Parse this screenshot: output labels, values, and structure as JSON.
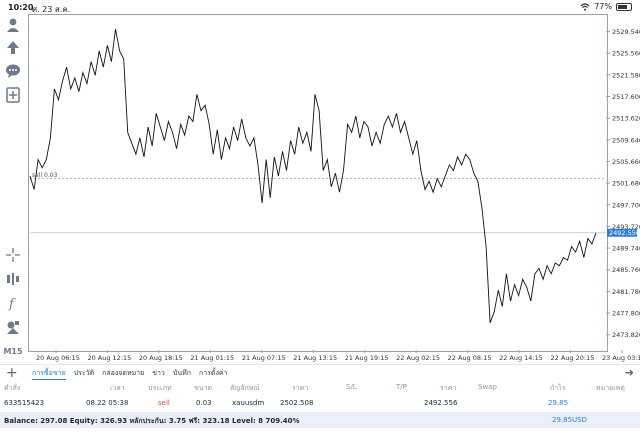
{
  "status": {
    "time": "10:20",
    "date": "ศ. 23 ส.ค.",
    "battery": "77%",
    "battery_level": 0.77
  },
  "sidebar": {
    "tools": [
      "user-icon",
      "pointer-up-icon",
      "chat-icon",
      "add-chart-icon",
      "crosshair-icon",
      "indicators-icon",
      "function-icon",
      "objects-icon"
    ],
    "timeframe": "M15"
  },
  "chart_data": {
    "type": "line",
    "x_labels": [
      "20 Aug 06:15",
      "20 Aug 12:15",
      "20 Aug 18:15",
      "21 Aug 01:15",
      "21 Aug 07:15",
      "21 Aug 13:15",
      "21 Aug 19:15",
      "22 Aug 02:15",
      "22 Aug 08:15",
      "22 Aug 14:15",
      "22 Aug 20:15",
      "23 Aug 03:15"
    ],
    "y_ticks": [
      2529.54,
      2525.56,
      2521.58,
      2517.6,
      2513.62,
      2509.64,
      2505.66,
      2501.68,
      2497.7,
      2493.72,
      2489.74,
      2485.76,
      2481.78,
      2477.8,
      2473.82
    ],
    "ylim": [
      2471.0,
      2532.4
    ],
    "level_line": {
      "label": "sell 0.03",
      "value": 2502.508
    },
    "bid_line": 2492.556,
    "bid_label": "2492.556",
    "series": [
      {
        "values": [
          2503.0,
          2500.5,
          2506.0,
          2504.5,
          2506.0,
          2510.0,
          2519.0,
          2517.0,
          2520.5,
          2523.0,
          2519.0,
          2521.0,
          2518.5,
          2522.0,
          2520.0,
          2524.0,
          2521.5,
          2526.0,
          2523.0,
          2527.0,
          2524.0,
          2530.0,
          2526.0,
          2524.5,
          2511.0,
          2509.0,
          2507.0,
          2510.0,
          2506.5,
          2512.0,
          2508.5,
          2514.5,
          2512.0,
          2509.5,
          2513.0,
          2511.0,
          2508.0,
          2512.5,
          2510.5,
          2514.0,
          2513.0,
          2518.0,
          2515.0,
          2516.0,
          2512.5,
          2507.0,
          2511.5,
          2506.0,
          2510.0,
          2508.0,
          2512.0,
          2509.5,
          2513.5,
          2510.0,
          2508.5,
          2510.0,
          2505.0,
          2498.0,
          2506.0,
          2499.0,
          2506.5,
          2503.0,
          2507.5,
          2504.0,
          2509.5,
          2507.0,
          2512.0,
          2509.0,
          2511.0,
          2507.5,
          2518.0,
          2515.0,
          2504.0,
          2506.0,
          2501.0,
          2503.5,
          2500.0,
          2504.0,
          2512.5,
          2511.0,
          2514.0,
          2510.0,
          2513.0,
          2512.0,
          2508.5,
          2511.0,
          2509.0,
          2512.5,
          2514.0,
          2512.0,
          2514.5,
          2511.0,
          2513.0,
          2510.0,
          2507.0,
          2509.5,
          2504.0,
          2500.5,
          2502.0,
          2500.0,
          2502.5,
          2501.0,
          2503.0,
          2505.0,
          2504.0,
          2506.5,
          2505.0,
          2507.0,
          2506.0,
          2503.5,
          2502.0,
          2497.0,
          2490.0,
          2476.0,
          2478.0,
          2482.0,
          2479.0,
          2485.0,
          2480.0,
          2483.0,
          2481.0,
          2484.0,
          2482.5,
          2480.0,
          2485.0,
          2486.0,
          2484.0,
          2486.5,
          2485.0,
          2487.0,
          2486.5,
          2488.0,
          2487.5,
          2490.0,
          2489.0,
          2491.0,
          2488.0,
          2491.5,
          2490.5,
          2492.5
        ]
      }
    ]
  },
  "tabs": [
    "การซื้อขาย",
    "ประวัติ",
    "กล่องจดหมาย",
    "ข่าว",
    "บันทึก",
    "การตั้งค่า"
  ],
  "table": {
    "headers": {
      "order": "คำสั่ง",
      "time": "เวลา",
      "type": "ประเภท",
      "size": "ขนาด",
      "symbol": "สัญลักษณ์",
      "price": "ราคา",
      "sl": "S/L",
      "tp": "T/P",
      "cur_price": "ราคา",
      "swap": "Swap",
      "profit": "กำไร",
      "comment": "หมายเหตุ"
    },
    "row": {
      "order": "633515423",
      "time": "08.22 05:38",
      "type": "sell",
      "size": "0.03",
      "symbol": "xauusdm",
      "price": "2502.508",
      "sl": "",
      "tp": "",
      "cur_price": "2492.556",
      "swap": "",
      "profit": "29.85",
      "comment": ""
    }
  },
  "footer": {
    "balance": "Balance: 297.08 Equity: 326.93 หลักประกัน: 3.75 ฟรี: 323.18 Level: 8 709.40%",
    "total_profit": "29.85",
    "currency": "USD"
  }
}
